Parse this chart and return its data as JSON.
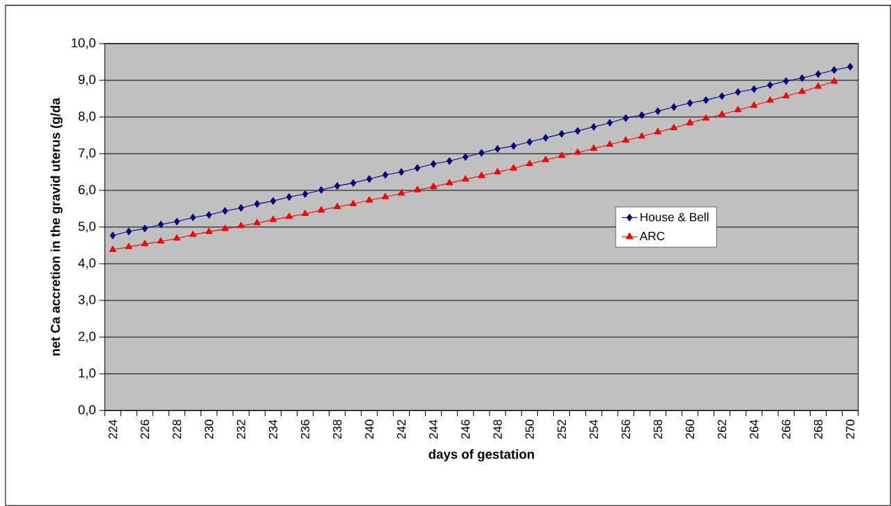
{
  "chart_data": {
    "type": "line",
    "xlabel": "days of gestation",
    "ylabel": "net Ca accretion in the gravid uterus  (g/da",
    "categories": [
      "224",
      null,
      "226",
      null,
      "228",
      null,
      "230",
      null,
      "232",
      null,
      "234",
      null,
      "236",
      null,
      "238",
      null,
      "240",
      null,
      "242",
      null,
      "244",
      null,
      "246",
      null,
      "248",
      null,
      "250",
      null,
      "252",
      null,
      "254",
      null,
      "256",
      null,
      "258",
      null,
      "260",
      null,
      "262",
      null,
      "264",
      null,
      "266",
      null,
      "268",
      null,
      "270"
    ],
    "series": [
      {
        "name": "House & Bell",
        "color": "#000080",
        "marker": "diamond",
        "values": [
          4.77,
          4.88,
          4.96,
          5.07,
          5.15,
          5.26,
          5.33,
          5.44,
          5.52,
          5.63,
          5.71,
          5.82,
          5.9,
          6.01,
          6.12,
          6.2,
          6.31,
          6.42,
          6.5,
          6.61,
          6.72,
          6.8,
          6.91,
          7.02,
          7.13,
          7.21,
          7.32,
          7.43,
          7.54,
          7.62,
          7.73,
          7.84,
          7.97,
          8.05,
          8.16,
          8.27,
          8.38,
          8.46,
          8.57,
          8.68,
          8.76,
          8.87,
          8.98,
          9.06,
          9.17,
          9.28,
          9.37
        ]
      },
      {
        "name": "ARC",
        "color": "#ff0000",
        "marker": "triangle",
        "values": [
          4.38,
          4.46,
          4.54,
          4.61,
          4.69,
          4.79,
          4.87,
          4.95,
          5.03,
          5.11,
          5.2,
          5.28,
          5.36,
          5.46,
          5.55,
          5.63,
          5.73,
          5.82,
          5.92,
          6.01,
          6.1,
          6.2,
          6.3,
          6.4,
          6.5,
          6.6,
          6.72,
          6.83,
          6.94,
          7.03,
          7.14,
          7.25,
          7.36,
          7.47,
          7.59,
          7.7,
          7.84,
          7.96,
          8.07,
          8.19,
          8.31,
          8.45,
          8.57,
          8.69,
          8.83,
          8.97,
          null
        ]
      }
    ],
    "ylim": [
      0,
      10
    ],
    "yticks": [
      {
        "value": 0,
        "label": "0,0"
      },
      {
        "value": 1,
        "label": "1,0"
      },
      {
        "value": 2,
        "label": "2,0"
      },
      {
        "value": 3,
        "label": "3,0"
      },
      {
        "value": 4,
        "label": "4,0"
      },
      {
        "value": 5,
        "label": "5,0"
      },
      {
        "value": 6,
        "label": "6,0"
      },
      {
        "value": 7,
        "label": "7,0"
      },
      {
        "value": 8,
        "label": "8,0"
      },
      {
        "value": 9,
        "label": "9,0"
      },
      {
        "value": 10,
        "label": "10,0"
      }
    ],
    "grid": "y",
    "legend": "right",
    "line_style": "solid"
  }
}
